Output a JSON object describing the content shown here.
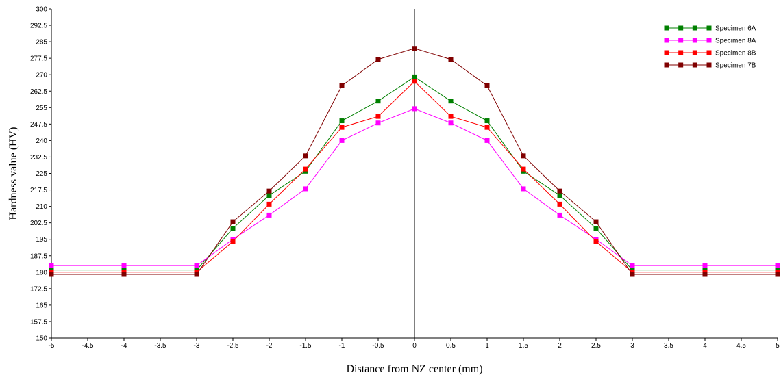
{
  "chart_data": {
    "type": "line",
    "title": "",
    "xlabel": "Distance from NZ center (mm)",
    "ylabel": "Hardness value (HV)",
    "xlim": [
      -5,
      5
    ],
    "ylim": [
      150,
      300
    ],
    "x_ticks": [
      "-5",
      "-4.5",
      "-4",
      "-3.5",
      "-3",
      "-2.5",
      "-2",
      "-1.5",
      "-1",
      "-0.5",
      "0",
      "0.5",
      "1",
      "1.5",
      "2",
      "2.5",
      "3",
      "3.5",
      "4",
      "4.5",
      "5"
    ],
    "y_ticks": [
      "150",
      "157.5",
      "165",
      "172.5",
      "180",
      "187.5",
      "195",
      "202.5",
      "210",
      "217.5",
      "225",
      "232.5",
      "240",
      "247.5",
      "255",
      "262.5",
      "270",
      "277.5",
      "285",
      "292.5",
      "300"
    ],
    "grid": false,
    "legend_position": "top-right",
    "x": [
      -5,
      -4,
      -3,
      -2.5,
      -2,
      -1.5,
      -1,
      -0.5,
      0,
      0.5,
      1,
      1.5,
      2,
      2.5,
      3,
      4,
      5
    ],
    "series": [
      {
        "name": "Specimen 6A",
        "color": "#008000",
        "values": [
          181,
          181,
          181,
          200,
          215,
          226,
          249,
          258,
          269,
          258,
          249,
          226,
          215,
          200,
          181,
          181,
          181
        ]
      },
      {
        "name": "Specimen 8A",
        "color": "#ff00ff",
        "values": [
          183,
          183,
          183,
          195,
          206,
          218,
          240,
          248,
          254.5,
          248,
          240,
          218,
          206,
          195,
          183,
          183,
          183
        ]
      },
      {
        "name": "Specimen 8B",
        "color": "#ff0000",
        "values": [
          180,
          180,
          180,
          194,
          211,
          227,
          246,
          251,
          267,
          251,
          246,
          227,
          211,
          194,
          180,
          180,
          180
        ]
      },
      {
        "name": "Specimen 7B",
        "color": "#800000",
        "values": [
          179,
          179,
          179,
          203,
          217,
          233,
          265,
          277,
          282,
          277,
          265,
          233,
          217,
          203,
          179,
          179,
          179
        ]
      }
    ]
  }
}
